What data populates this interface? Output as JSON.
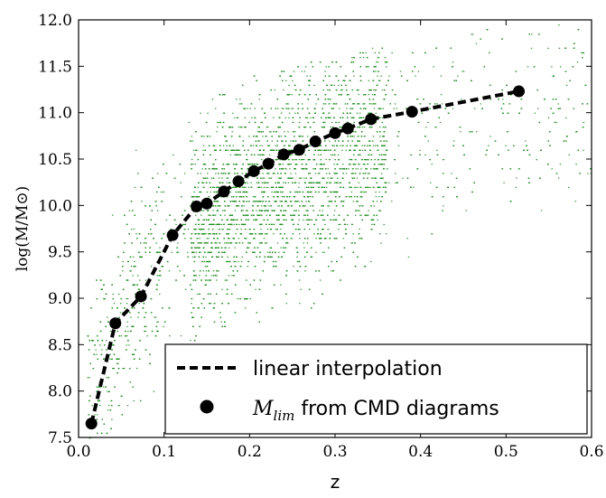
{
  "chart_data": {
    "type": "scatter",
    "xlabel": "z",
    "ylabel": "log(M/M⊙)",
    "xlim": [
      0.0,
      0.6
    ],
    "ylim": [
      7.5,
      12.0
    ],
    "x_ticks": [
      "0.0",
      "0.1",
      "0.2",
      "0.3",
      "0.4",
      "0.5",
      "0.6"
    ],
    "y_ticks": [
      "7.5",
      "8.0",
      "8.5",
      "9.0",
      "9.5",
      "10.0",
      "10.5",
      "11.0",
      "11.5",
      "12.0"
    ],
    "grid": false,
    "legend_position": "lower-right",
    "colors": {
      "scatter": "#1e8c1e",
      "markers": "#000000",
      "line": "#000000"
    },
    "series": [
      {
        "name": "linear interpolation",
        "kind": "line-dashed",
        "x": [
          0.015,
          0.043,
          0.073,
          0.11,
          0.138,
          0.15,
          0.17,
          0.187,
          0.205,
          0.222,
          0.24,
          0.258,
          0.277,
          0.3,
          0.315,
          0.342,
          0.39,
          0.515
        ],
        "y": [
          7.65,
          8.73,
          9.02,
          9.68,
          9.99,
          10.02,
          10.15,
          10.26,
          10.37,
          10.45,
          10.55,
          10.6,
          10.69,
          10.78,
          10.83,
          10.93,
          11.01,
          11.23
        ]
      },
      {
        "name": "M_lim from CMD diagrams",
        "kind": "markers",
        "x": [
          0.015,
          0.043,
          0.073,
          0.11,
          0.138,
          0.15,
          0.17,
          0.187,
          0.205,
          0.222,
          0.24,
          0.258,
          0.277,
          0.3,
          0.315,
          0.342,
          0.39,
          0.515
        ],
        "y": [
          7.65,
          8.73,
          9.02,
          9.68,
          9.99,
          10.02,
          10.15,
          10.26,
          10.37,
          10.45,
          10.55,
          10.6,
          10.69,
          10.78,
          10.83,
          10.93,
          11.01,
          11.23
        ]
      }
    ],
    "galaxy_cloud_density_model": {
      "x_range": [
        0.005,
        0.6
      ],
      "median_y_by_z": [
        [
          0.01,
          7.9
        ],
        [
          0.05,
          8.9
        ],
        [
          0.1,
          9.5
        ],
        [
          0.14,
          9.8
        ],
        [
          0.2,
          10.1
        ],
        [
          0.3,
          10.5
        ],
        [
          0.4,
          10.8
        ],
        [
          0.5,
          11.0
        ],
        [
          0.6,
          11.1
        ]
      ],
      "upper_y_by_z": [
        [
          0.01,
          9.0
        ],
        [
          0.05,
          10.6
        ],
        [
          0.1,
          11.0
        ],
        [
          0.2,
          11.4
        ],
        [
          0.3,
          11.6
        ],
        [
          0.5,
          12.0
        ]
      ]
    }
  }
}
